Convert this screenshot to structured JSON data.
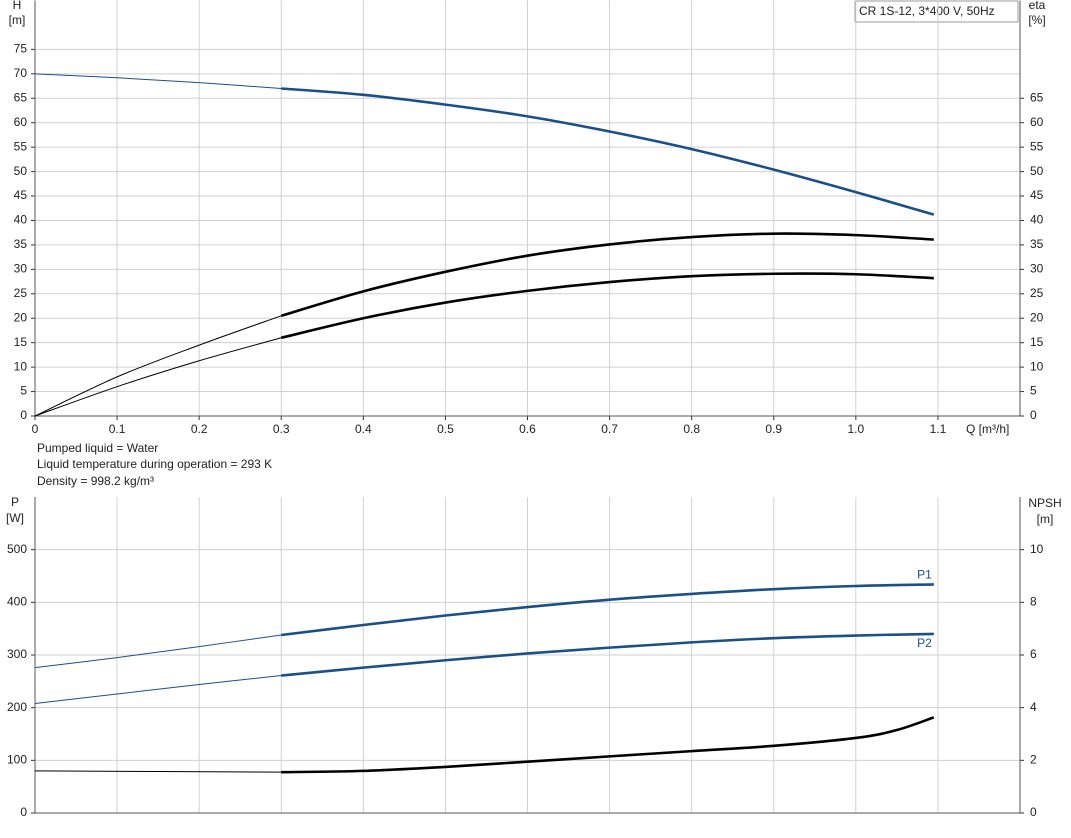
{
  "chart_data": [
    {
      "type": "line",
      "title": "CR 1S-12, 3*400 V, 50Hz",
      "ylabel": "H",
      "yunit": "[m]",
      "y2label": "eta",
      "y2unit": "[%]",
      "xlabel": "Q [m³/h]",
      "notes": [
        "Pumped liquid = Water",
        "Liquid temperature during operation = 293 K",
        "Density = 998.2 kg/m³"
      ],
      "xlim": [
        0,
        1.2
      ],
      "xticks": [
        0,
        0.1,
        0.2,
        0.3,
        0.4,
        0.5,
        0.6,
        0.7,
        0.8,
        0.9,
        {
          "value": 1,
          "label": "1.0"
        },
        1.1
      ],
      "ylim": [
        0,
        85
      ],
      "yticks": [
        0,
        5,
        10,
        15,
        20,
        25,
        30,
        35,
        40,
        45,
        50,
        55,
        60,
        65,
        70,
        75
      ],
      "y2lim": [
        0,
        85
      ],
      "y2ticks": [
        0,
        5,
        10,
        15,
        20,
        25,
        30,
        35,
        40,
        45,
        50,
        55,
        60,
        65
      ],
      "grid": true,
      "bold_from": 0.3,
      "series": [
        {
          "color": "#1a4f8a",
          "x": [
            0,
            0.1,
            0.2,
            0.3,
            0.4,
            0.5,
            0.6,
            0.7,
            0.8,
            0.9,
            1.0,
            1.095
          ],
          "values": [
            70,
            69.2,
            68.2,
            67,
            65.7,
            63.7,
            61.3,
            58.2,
            54.6,
            50.4,
            45.8,
            41.2
          ]
        },
        {
          "color": "#000000",
          "axis": "y2",
          "x": [
            0,
            0.1,
            0.2,
            0.3,
            0.4,
            0.5,
            0.6,
            0.7,
            0.8,
            0.9,
            1.0,
            1.095
          ],
          "values": [
            0,
            8,
            14.5,
            20.5,
            25.5,
            29.5,
            32.8,
            35.1,
            36.6,
            37.3,
            37,
            36.1
          ]
        },
        {
          "color": "#000000",
          "axis": "y2",
          "x": [
            0,
            0.1,
            0.2,
            0.3,
            0.4,
            0.5,
            0.6,
            0.7,
            0.8,
            0.9,
            1.0,
            1.095
          ],
          "values": [
            0,
            6,
            11.3,
            16,
            20,
            23.2,
            25.6,
            27.4,
            28.6,
            29.1,
            29,
            28.2
          ]
        }
      ]
    },
    {
      "type": "line",
      "ylabel": "P",
      "yunit": "[W]",
      "y2label": "NPSH",
      "y2unit": "[m]",
      "xlim": [
        0,
        1.2
      ],
      "ylim": [
        0,
        600
      ],
      "yticks": [
        0,
        100,
        200,
        300,
        400,
        500
      ],
      "y2lim": [
        0,
        12
      ],
      "y2ticks": [
        0,
        2,
        4,
        6,
        8,
        10
      ],
      "grid": true,
      "bold_from": 0.3,
      "series": [
        {
          "name": "P1",
          "color": "#1a4f8a",
          "x": [
            0,
            0.1,
            0.2,
            0.3,
            0.4,
            0.5,
            0.6,
            0.7,
            0.8,
            0.9,
            1.0,
            1.095
          ],
          "values": [
            276,
            295,
            316,
            338,
            357,
            375,
            391,
            405,
            416,
            425,
            431,
            434
          ]
        },
        {
          "name": "P2",
          "color": "#1a4f8a",
          "x": [
            0,
            0.1,
            0.2,
            0.3,
            0.4,
            0.5,
            0.6,
            0.7,
            0.8,
            0.9,
            1.0,
            1.095
          ],
          "values": [
            208,
            226,
            244,
            261,
            276,
            290,
            303,
            314,
            324,
            332,
            337,
            340
          ]
        },
        {
          "color": "#000000",
          "axis": "y2",
          "x": [
            0,
            0.3,
            0.4,
            0.5,
            0.6,
            0.7,
            0.8,
            0.9,
            1.0,
            1.05,
            1.095
          ],
          "values": [
            1.6,
            1.55,
            1.6,
            1.75,
            1.95,
            2.15,
            2.35,
            2.55,
            2.85,
            3.15,
            3.63
          ]
        }
      ]
    }
  ]
}
